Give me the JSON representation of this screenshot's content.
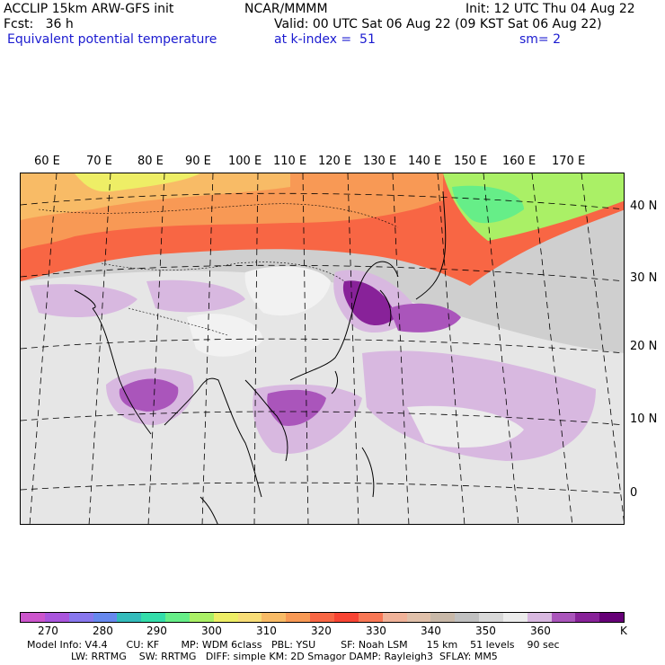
{
  "header": {
    "model": "ACCLIP 15km ARW-GFS init",
    "org": "NCAR/MMMM",
    "init": "Init: 12 UTC Thu 04 Aug 22",
    "fcst": "Fcst:   36 h",
    "valid": "Valid: 00 UTC Sat 06 Aug 22 (09 KST Sat 06 Aug 22)",
    "field": "Equivalent potential temperature",
    "level": "at k-index =  51",
    "smooth": "sm= 2"
  },
  "lon_labels": [
    "60 E",
    "70 E",
    "80 E",
    "90 E",
    "100 E",
    "110 E",
    "120 E",
    "130 E",
    "140 E",
    "150 E",
    "160 E",
    "170 E"
  ],
  "lat_labels": [
    "40 N",
    "30 N",
    "20 N",
    "10 N",
    "0"
  ],
  "colorbar": {
    "colors": [
      "#cc55cc",
      "#aa55dd",
      "#8877ee",
      "#6688ee",
      "#33bbbb",
      "#33ddaa",
      "#66ee88",
      "#aaf066",
      "#eeee66",
      "#f8dd77",
      "#f8bb66",
      "#f89955",
      "#f86644",
      "#f84433",
      "#f87755",
      "#f0b299",
      "#e0c0aa",
      "#c8b8a8",
      "#c0c0c0",
      "#d8d8d8",
      "#ececec",
      "#d8b8e0",
      "#aa55bb",
      "#882299",
      "#660077"
    ],
    "ticks": [
      "270",
      "280",
      "290",
      "300",
      "310",
      "320",
      "330",
      "340",
      "350",
      "360",
      "K"
    ]
  },
  "info": {
    "line1": "Model Info: V4.4      CU: KF       MP: WDM 6class   PBL: YSU        SF: Noah LSM      15 km    51 levels    90 sec",
    "line2": "              LW: RRTMG    SW: RRTMG   DIFF: simple KM: 2D Smagor DAMP: Rayleigh3  SFLAY: MM5"
  }
}
